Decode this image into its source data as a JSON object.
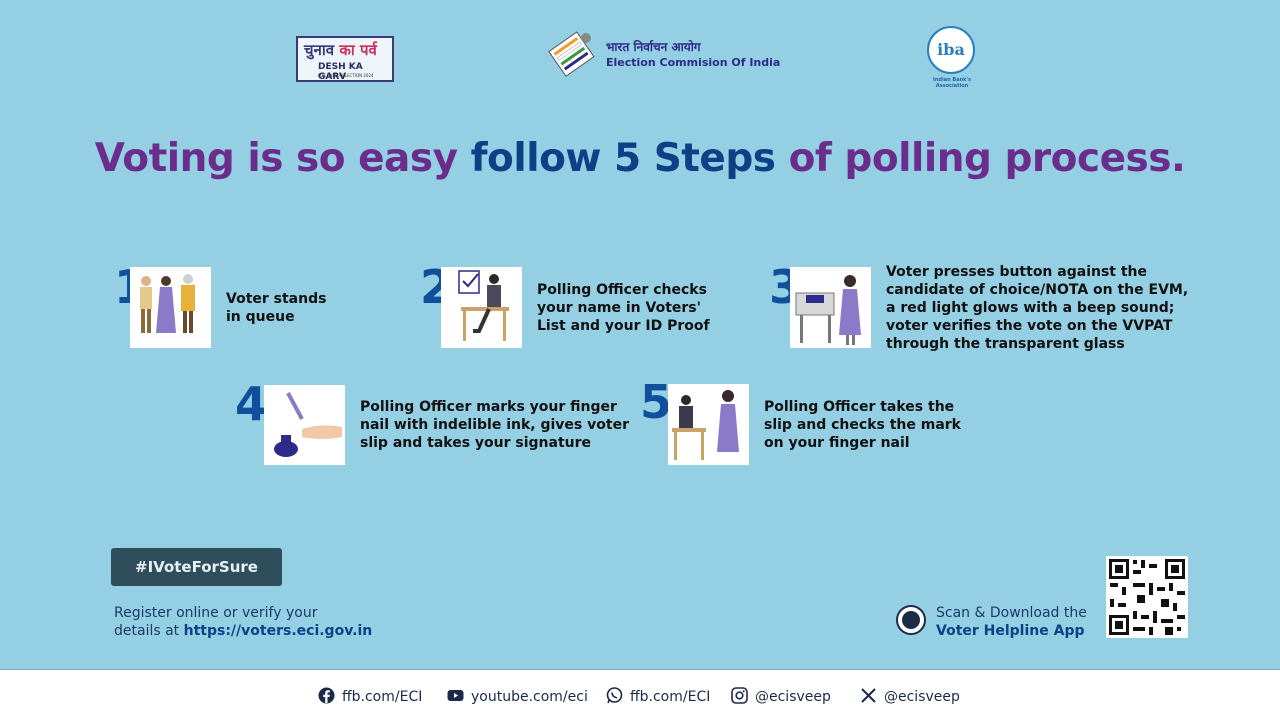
{
  "logos": {
    "chunav_hindi_a": "चुनाव",
    "chunav_hindi_b": "का पर्व",
    "chunav_english": "DESH KA GARV",
    "chunav_sub": "LOK SABHA ELECTION 2024",
    "eci_hindi": "भारत निर्वाचन आयोग",
    "eci_english": "Election Commision Of India",
    "iba_mark": "iba",
    "iba_caption": "Indian Bank's Association"
  },
  "headline": {
    "part1": "Voting is so easy ",
    "part2": "follow 5 Steps ",
    "part3": "of polling process."
  },
  "steps": [
    {
      "number": "1",
      "lines": [
        "Voter stands",
        "in queue"
      ]
    },
    {
      "number": "2",
      "lines": [
        "Polling Officer checks",
        "your name in Voters'",
        "List and your ID Proof"
      ]
    },
    {
      "number": "3",
      "lines": [
        "Voter presses button against the",
        "candidate of choice/NOTA on the EVM,",
        "a red light glows with a beep sound;",
        "voter verifies the vote on the VVPAT",
        "through the transparent glass"
      ]
    },
    {
      "number": "4",
      "lines": [
        "Polling Officer marks your finger",
        "nail with indelible ink, gives voter",
        "slip and takes your signature"
      ]
    },
    {
      "number": "5",
      "lines": [
        "Polling Officer takes the",
        "slip and checks the mark",
        "on your finger nail"
      ]
    }
  ],
  "hashtag": "#IVoteForSure",
  "register": {
    "line1": "Register online or verify your",
    "line2_prefix": "details at ",
    "url": "https://voters.eci.gov.in"
  },
  "app": {
    "line1": "Scan & Download the",
    "line2": "Voter Helpline App"
  },
  "footer": {
    "facebook1": "ffb.com/ECI",
    "youtube": "youtube.com/eci",
    "whatsapp": "ffb.com/ECI",
    "instagram": "@ecisveep",
    "x": "@ecisveep"
  },
  "colors": {
    "background": "#94cfe3",
    "purple": "#6b2d8c",
    "blue": "#0f3f86",
    "hashtag_bg": "#2f4d5a"
  }
}
